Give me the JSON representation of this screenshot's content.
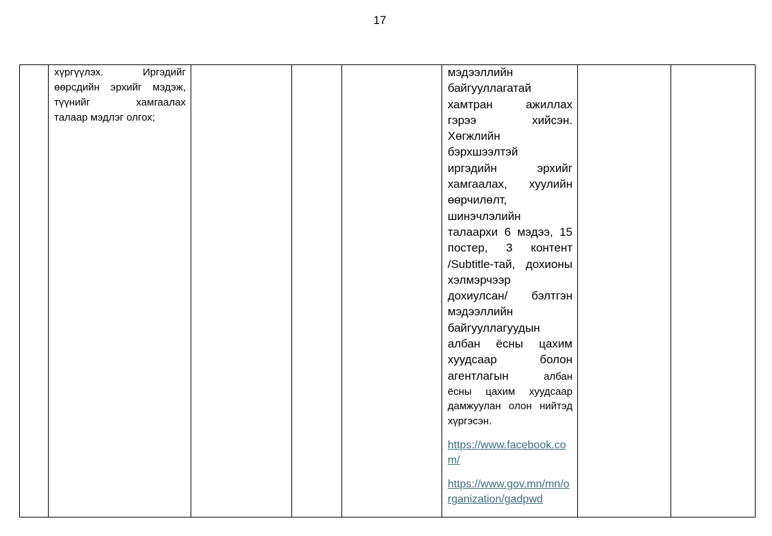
{
  "page_number": "17",
  "colors": {
    "link": "#3c6d7c",
    "border": "#000000"
  },
  "cell_goal": [
    {
      "t": "хүргүүлэх. Иргэдийг",
      "j": true
    },
    {
      "t": "өөрсдийн эрхийг мэдэж,",
      "j": true
    },
    {
      "t": "түүнийг хамгаалах",
      "j": true
    },
    {
      "t": "талаар мэдлэг олгох;",
      "j": false
    }
  ],
  "cell_result": [
    {
      "t": "мэдээллийн",
      "j": false
    },
    {
      "t": "байгууллагатай",
      "j": false
    },
    {
      "t": "хамтран ажиллах",
      "j": true
    },
    {
      "t": "гэрээ хийсэн.",
      "j": true
    },
    {
      "t": "Хөгжлийн",
      "j": false
    },
    {
      "t": "бэрхшээлтэй",
      "j": false
    },
    {
      "t": "иргэдийн эрхийг",
      "j": true
    },
    {
      "t": "хамгаалах, хуулийн",
      "j": true
    },
    {
      "t": "өөрчилөлт,",
      "j": false
    },
    {
      "t": "шинэчлэлийн",
      "j": false
    },
    {
      "t": "талаархи 6 мэдээ, 15",
      "j": true
    },
    {
      "t": "постер, 3 контент",
      "j": true
    },
    {
      "t": "/Subtitle-тай, дохионы",
      "j": true
    },
    {
      "t": "хэлмэрчээр",
      "j": false
    },
    {
      "t": "дохиулсан/ бэлтгэн",
      "j": true
    },
    {
      "t": "мэдээллийн",
      "j": false
    },
    {
      "t": "байгууллагуудын",
      "j": false
    },
    {
      "t": "албан ёсны цахим",
      "j": true
    },
    {
      "t": "хуудсаар болон",
      "j": true
    },
    {
      "t": "агентлагын",
      "tail": "албан",
      "j": true
    },
    {
      "t": "ёсны цахим хуудсаар",
      "j": true,
      "small": true
    },
    {
      "t": "дамжуулан олон нийтэд",
      "j": true,
      "small": true
    },
    {
      "t": "хүргэсэн.",
      "j": false,
      "small": true
    }
  ],
  "links": [
    {
      "line1": "https://www.facebook.co",
      "line2": "m/"
    },
    {
      "line1": "https://www.gov.mn/mn/o",
      "line2": "rganization/gadpwd"
    }
  ]
}
